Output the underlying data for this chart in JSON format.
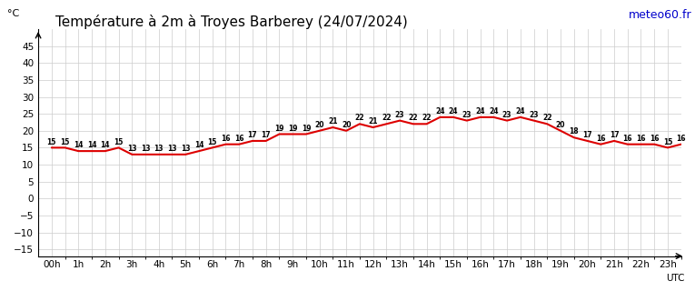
{
  "title": "Température à 2m à Troyes Barberey (24/07/2024)",
  "ylabel": "°C",
  "xlabel_right": "UTC",
  "watermark": "meteo60.fr",
  "hours": [
    0,
    1,
    2,
    3,
    4,
    5,
    6,
    7,
    8,
    9,
    10,
    11,
    12,
    13,
    14,
    15,
    16,
    17,
    18,
    19,
    20,
    21,
    22,
    23
  ],
  "hour_labels": [
    "00h",
    "1h",
    "2h",
    "3h",
    "4h",
    "5h",
    "6h",
    "7h",
    "8h",
    "9h",
    "10h",
    "11h",
    "12h",
    "13h",
    "14h",
    "15h",
    "16h",
    "17h",
    "18h",
    "19h",
    "20h",
    "21h",
    "22h",
    "23h"
  ],
  "temperatures": [
    15,
    15,
    14,
    14,
    14,
    15,
    13,
    13,
    13,
    13,
    13,
    14,
    15,
    16,
    16,
    17,
    17,
    19,
    19,
    19,
    20,
    21,
    20,
    22,
    21,
    22,
    23,
    22,
    22,
    24,
    24,
    23,
    24,
    24,
    23,
    24,
    23,
    22,
    20,
    18,
    17,
    16,
    17,
    16,
    16,
    16,
    15,
    16
  ],
  "temp_x": [
    0,
    0.5,
    1,
    1.5,
    2,
    2.5,
    3,
    3.5,
    4,
    4.5,
    5,
    5.5,
    6,
    6.5,
    7,
    7.5,
    8,
    8.5,
    9,
    9.5,
    10,
    10.5,
    11,
    11.5,
    12,
    12.5,
    13,
    13.5,
    14,
    14.5,
    15,
    15.5,
    16,
    16.5,
    17,
    17.5,
    18,
    18.5,
    19,
    19.5,
    20,
    20.5,
    21,
    21.5,
    22,
    22.5,
    23,
    23.5
  ],
  "line_color": "#dd0000",
  "line_width": 1.5,
  "grid_color": "#cccccc",
  "bg_color": "#ffffff",
  "ylim": [
    -17,
    50
  ],
  "yticks": [
    -15,
    -10,
    -5,
    0,
    5,
    10,
    15,
    20,
    25,
    30,
    35,
    40,
    45
  ],
  "title_fontsize": 11,
  "tick_fontsize": 7.5,
  "label_fontsize": 8,
  "watermark_color": "#0000cc",
  "watermark_fontsize": 9
}
